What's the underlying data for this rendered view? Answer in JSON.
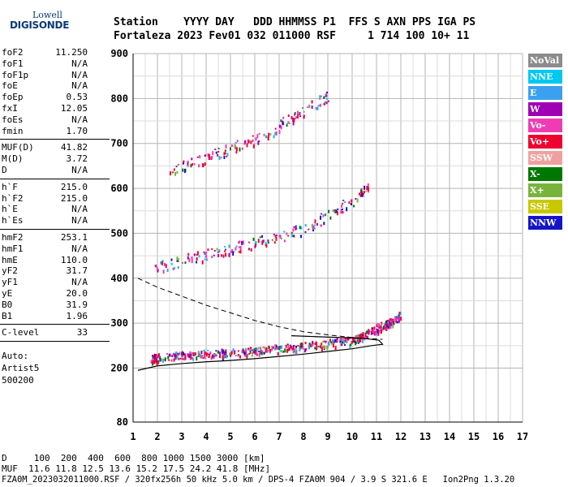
{
  "logo": {
    "top": "Lowell",
    "name": "DIGISONDE"
  },
  "header": {
    "labels_line": "Station    YYYY DAY   DDD HHMMSS P1  FFS S AXN PPS IGA PS",
    "values_line": "Fortaleza 2023 Fev01 032 011000 RSF     1 714 100 10+ 11"
  },
  "params_group1": [
    {
      "name": "foF2",
      "value": "11.250"
    },
    {
      "name": "foF1",
      "value": "N/A"
    },
    {
      "name": "foF1p",
      "value": "N/A"
    },
    {
      "name": "foE",
      "value": "N/A"
    },
    {
      "name": "foEp",
      "value": "0.53"
    },
    {
      "name": "fxI",
      "value": "12.05"
    },
    {
      "name": "foEs",
      "value": "N/A"
    },
    {
      "name": "fmin",
      "value": "1.70"
    }
  ],
  "params_group2": [
    {
      "name": "MUF(D)",
      "value": "41.82"
    },
    {
      "name": "M(D)",
      "value": "3.72"
    },
    {
      "name": "D",
      "value": "N/A"
    }
  ],
  "params_group3": [
    {
      "name": "h`F",
      "value": "215.0"
    },
    {
      "name": "h`F2",
      "value": "215.0"
    },
    {
      "name": "h`E",
      "value": "N/A"
    },
    {
      "name": "h`Es",
      "value": "N/A"
    }
  ],
  "params_group4": [
    {
      "name": "hmF2",
      "value": "253.1"
    },
    {
      "name": "hmF1",
      "value": "N/A"
    },
    {
      "name": "hmE",
      "value": "110.0"
    },
    {
      "name": "yF2",
      "value": "31.7"
    },
    {
      "name": "yF1",
      "value": "N/A"
    },
    {
      "name": "yE",
      "value": "20.0"
    },
    {
      "name": "B0",
      "value": "31.9"
    },
    {
      "name": "B1",
      "value": "1.96"
    }
  ],
  "clevel": {
    "name": "C-level",
    "value": "33"
  },
  "auto": {
    "line1": "Auto:",
    "line2": "Artist5",
    "line3": "500200"
  },
  "footer": {
    "d_line": "D     100  200  400  600  800 1000 1500 3000 [km]",
    "muf_line": "MUF  11.6 11.8 12.5 13.6 15.2 17.5 24.2 41.8 [MHz]",
    "file_line": "FZA0M_2023032011000.RSF / 320fx256h 50 kHz 5.0 km / DPS-4 FZA0M 904 / 3.9 S 321.6 E   Ion2Png 1.3.20"
  },
  "legend": [
    {
      "label": "NoVal",
      "color": "#8c8c8c"
    },
    {
      "label": "NNE",
      "color": "#00c8f0"
    },
    {
      "label": "E",
      "color": "#3ca0f0"
    },
    {
      "label": "W",
      "color": "#a000b4"
    },
    {
      "label": "Vo-",
      "color": "#f03cb4"
    },
    {
      "label": "Vo+",
      "color": "#f00032"
    },
    {
      "label": "SSW",
      "color": "#f0a0a0"
    },
    {
      "label": "X-",
      "color": "#007800"
    },
    {
      "label": "X+",
      "color": "#78b43c"
    },
    {
      "label": "SSE",
      "color": "#c8c800"
    },
    {
      "label": "NNW",
      "color": "#1414c8"
    }
  ],
  "chart_data": {
    "type": "scatter",
    "title": "",
    "xlabel": "",
    "ylabel": "",
    "xlim": [
      1,
      17
    ],
    "ylim": [
      80,
      900
    ],
    "x_ticks": [
      1,
      2,
      3,
      4,
      5,
      6,
      7,
      8,
      9,
      10,
      11,
      12,
      13,
      14,
      15,
      16,
      17
    ],
    "y_ticks": [
      80,
      200,
      300,
      400,
      500,
      600,
      700,
      800,
      900
    ],
    "grid": true,
    "echo_traces": [
      {
        "name": "F-layer trace",
        "points": [
          [
            1.7,
            222
          ],
          [
            2,
            225
          ],
          [
            3,
            230
          ],
          [
            4,
            233
          ],
          [
            5,
            236
          ],
          [
            6,
            240
          ],
          [
            7,
            245
          ],
          [
            8,
            250
          ],
          [
            9,
            256
          ],
          [
            10,
            263
          ],
          [
            10.5,
            275
          ],
          [
            11,
            290
          ],
          [
            11.5,
            300
          ],
          [
            12,
            320
          ]
        ]
      },
      {
        "name": "2nd hop trace",
        "points": [
          [
            1.8,
            425
          ],
          [
            3,
            440
          ],
          [
            4,
            455
          ],
          [
            5,
            468
          ],
          [
            6,
            480
          ],
          [
            7,
            495
          ],
          [
            8,
            510
          ],
          [
            9,
            540
          ],
          [
            10,
            575
          ],
          [
            10.7,
            605
          ]
        ]
      },
      {
        "name": "3rd hop trace",
        "points": [
          [
            2.5,
            640
          ],
          [
            3.5,
            660
          ],
          [
            4.5,
            680
          ],
          [
            5.5,
            700
          ],
          [
            6.5,
            720
          ],
          [
            7.5,
            760
          ],
          [
            8.5,
            790
          ],
          [
            9,
            805
          ]
        ]
      }
    ],
    "profile_curve": [
      [
        1.2,
        195
      ],
      [
        2,
        205
      ],
      [
        3,
        210
      ],
      [
        4,
        214
      ],
      [
        5,
        217
      ],
      [
        6,
        221
      ],
      [
        7,
        226
      ],
      [
        8,
        231
      ],
      [
        9,
        237
      ],
      [
        10,
        243
      ],
      [
        10.8,
        250
      ],
      [
        11.25,
        253
      ],
      [
        11.1,
        262
      ],
      [
        10.5,
        266
      ],
      [
        9.5,
        268
      ],
      [
        8.5,
        270
      ],
      [
        7.5,
        272
      ]
    ],
    "dashed_curve": [
      [
        1.2,
        400
      ],
      [
        2,
        380
      ],
      [
        3,
        360
      ],
      [
        4,
        340
      ],
      [
        5,
        323
      ],
      [
        6,
        306
      ],
      [
        7,
        292
      ],
      [
        8,
        281
      ],
      [
        9,
        274
      ],
      [
        10,
        268
      ],
      [
        11.25,
        264
      ]
    ]
  }
}
